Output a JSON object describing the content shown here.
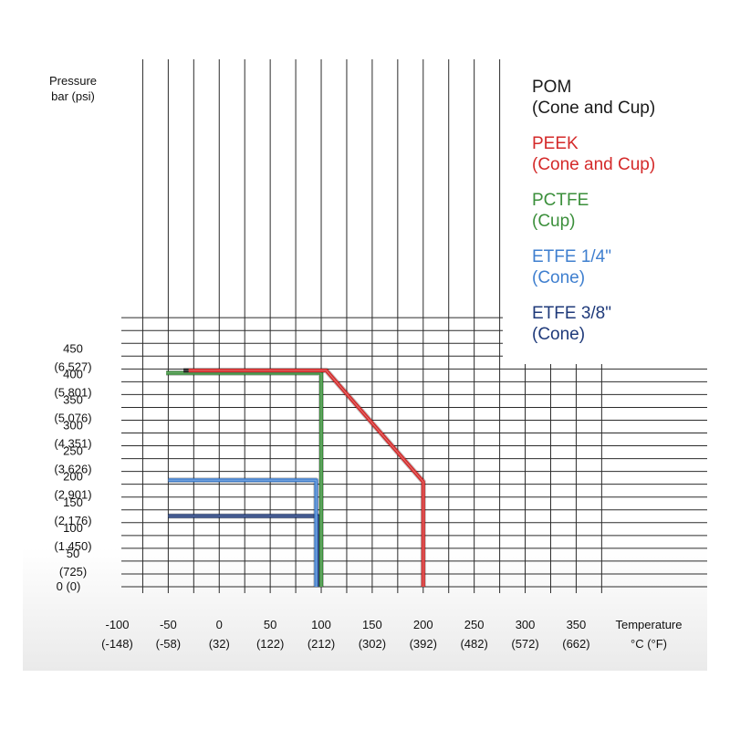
{
  "chart_data": {
    "type": "line",
    "title": "",
    "ylabel": [
      "Pressure",
      "bar (psi)"
    ],
    "xlabel": [
      "Temperature",
      "°C (°F)"
    ],
    "xlim": [
      -120,
      362
    ],
    "ylim": [
      -15,
      520
    ],
    "x_ticks": [
      {
        "value": -100,
        "label": "-100",
        "sub": "(-148)"
      },
      {
        "value": -50,
        "label": "-50",
        "sub": "(-58)"
      },
      {
        "value": 0,
        "label": "0",
        "sub": "(32)"
      },
      {
        "value": 50,
        "label": "50",
        "sub": "(122)"
      },
      {
        "value": 100,
        "label": "100",
        "sub": "(212)"
      },
      {
        "value": 150,
        "label": "150",
        "sub": "(302)"
      },
      {
        "value": 200,
        "label": "200",
        "sub": "(392)"
      },
      {
        "value": 250,
        "label": "250",
        "sub": "(482)"
      },
      {
        "value": 300,
        "label": "300",
        "sub": "(572)"
      },
      {
        "value": 350,
        "label": "350",
        "sub": "(662)"
      }
    ],
    "y_ticks": [
      {
        "value": 0,
        "label": "0 (0)",
        "sub": ""
      },
      {
        "value": 50,
        "label": "50",
        "sub": "(725)"
      },
      {
        "value": 100,
        "label": "100",
        "sub": "(1.450)"
      },
      {
        "value": 150,
        "label": "150",
        "sub": "(2.176)"
      },
      {
        "value": 200,
        "label": "200",
        "sub": "(2.901)"
      },
      {
        "value": 250,
        "label": "250",
        "sub": "(3.626)"
      },
      {
        "value": 300,
        "label": "300",
        "sub": "(4.351)"
      },
      {
        "value": 350,
        "label": "350",
        "sub": "(5.076)"
      },
      {
        "value": 400,
        "label": "400",
        "sub": "(5.801)"
      },
      {
        "value": 450,
        "label": "450",
        "sub": "(6.527)"
      }
    ],
    "grid": true,
    "legend_position": "top-right",
    "series": [
      {
        "name": "POM",
        "sub": "(Cone and Cup)",
        "color": "#1a1a1a",
        "points": [
          [
            -35,
            422
          ],
          [
            -30,
            422
          ]
        ]
      },
      {
        "name": "PEEK",
        "sub": "(Cone and Cup)",
        "color": "#d42a2a",
        "points": [
          [
            -30,
            422
          ],
          [
            105,
            422
          ],
          [
            200,
            205
          ],
          [
            200,
            0
          ]
        ]
      },
      {
        "name": "PCTFE",
        "sub": "(Cup)",
        "color": "#3b8f3b",
        "points": [
          [
            -52,
            417
          ],
          [
            100,
            417
          ],
          [
            100,
            0
          ]
        ]
      },
      {
        "name": "ETFE 1/4\"",
        "sub": "(Cone)",
        "color": "#3f7fcf",
        "points": [
          [
            -50,
            208
          ],
          [
            95,
            208
          ],
          [
            95,
            0
          ]
        ]
      },
      {
        "name": "ETFE 3/8\"",
        "sub": "(Cone)",
        "color": "#1f3a7a",
        "points": [
          [
            -50,
            138
          ],
          [
            97,
            138
          ],
          [
            97,
            0
          ]
        ]
      }
    ]
  }
}
